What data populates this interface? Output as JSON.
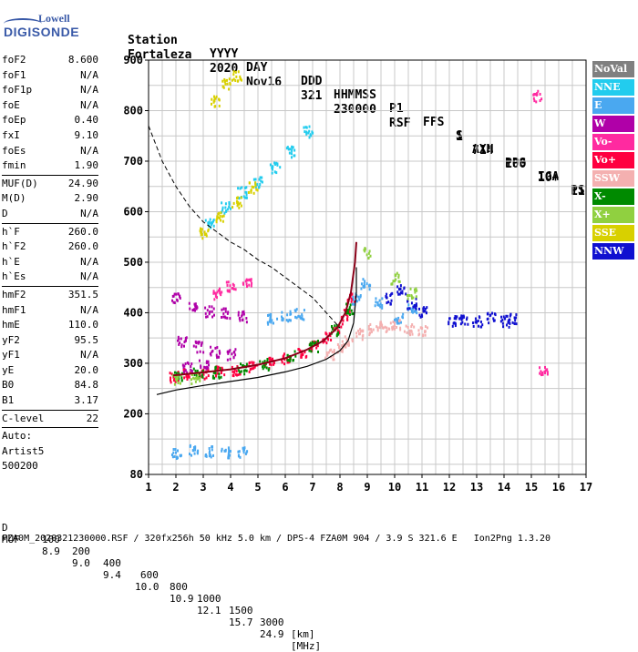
{
  "logo": {
    "line1": "Lowell",
    "line2": "DIGISONDE"
  },
  "header": {
    "labels": [
      "Station",
      "YYYY",
      "DAY",
      "DDD",
      "HHMMSS",
      "P1",
      "FFS",
      "S",
      "AXN",
      "PPS",
      "IGA",
      "PS"
    ],
    "values": [
      "Fortaleza",
      "2020",
      "Nov16",
      "321",
      "230000",
      "RSF",
      "1",
      "714",
      "100",
      "10+",
      "11"
    ]
  },
  "params": {
    "group1": [
      {
        "k": "foF2",
        "v": "8.600"
      },
      {
        "k": "foF1",
        "v": "N/A"
      },
      {
        "k": "foF1p",
        "v": "N/A"
      },
      {
        "k": "foE",
        "v": "N/A"
      },
      {
        "k": "foEp",
        "v": "0.40"
      },
      {
        "k": "fxI",
        "v": "9.10"
      },
      {
        "k": "foEs",
        "v": "N/A"
      },
      {
        "k": "fmin",
        "v": "1.90"
      }
    ],
    "group2": [
      {
        "k": "MUF(D)",
        "v": "24.90"
      },
      {
        "k": "M(D)",
        "v": "2.90"
      },
      {
        "k": "D",
        "v": "N/A"
      }
    ],
    "group3": [
      {
        "k": "h`F",
        "v": "260.0"
      },
      {
        "k": "h`F2",
        "v": "260.0"
      },
      {
        "k": "h`E",
        "v": "N/A"
      },
      {
        "k": "h`Es",
        "v": "N/A"
      }
    ],
    "group4": [
      {
        "k": "hmF2",
        "v": "351.5"
      },
      {
        "k": "hmF1",
        "v": "N/A"
      },
      {
        "k": "hmE",
        "v": "110.0"
      },
      {
        "k": "yF2",
        "v": "95.5"
      },
      {
        "k": "yF1",
        "v": "N/A"
      },
      {
        "k": "yE",
        "v": "20.0"
      },
      {
        "k": "B0",
        "v": "84.8"
      },
      {
        "k": "B1",
        "v": "3.17"
      }
    ],
    "group5": [
      {
        "k": "C-level",
        "v": "22"
      }
    ],
    "auto": [
      "Auto:",
      "Artist5",
      "500200"
    ]
  },
  "legend": [
    {
      "label": "NoVal",
      "color": "#808080",
      "text": "#ffffff"
    },
    {
      "label": "NNE",
      "color": "#22ccee",
      "text": "#ffffff"
    },
    {
      "label": "E",
      "color": "#4aa8f0",
      "text": "#ffffff"
    },
    {
      "label": "W",
      "color": "#b000a8",
      "text": "#ffffff"
    },
    {
      "label": "Vo-",
      "color": "#ff2aa0",
      "text": "#ffffff"
    },
    {
      "label": "Vo+",
      "color": "#ff0040",
      "text": "#ffffff"
    },
    {
      "label": "SSW",
      "color": "#f4b0b0",
      "text": "#ffffff"
    },
    {
      "label": "X-",
      "color": "#008a00",
      "text": "#ffffff"
    },
    {
      "label": "X+",
      "color": "#90d040",
      "text": "#ffffff"
    },
    {
      "label": "SSE",
      "color": "#d8d000",
      "text": "#ffffff"
    },
    {
      "label": "NNW",
      "color": "#1010d0",
      "text": "#ffffff"
    }
  ],
  "footer": {
    "d_label": "D",
    "d_values": [
      "100",
      "200",
      "400",
      "600",
      "800",
      "1000",
      "1500",
      "3000",
      "[km]"
    ],
    "muf_label": "MUF",
    "muf_values": [
      "8.9",
      "9.0",
      "9.4",
      "10.0",
      "10.9",
      "12.1",
      "15.7",
      "24.9",
      "[MHz]"
    ],
    "line": "FZA0M_2020321230000.RSF / 320fx256h 50 kHz 5.0 km / DPS-4 FZA0M 904 / 3.9 S 321.6 E   Ion2Png 1.3.20"
  },
  "chart_data": {
    "type": "scatter",
    "title": "",
    "xlabel": "",
    "ylabel": "",
    "xlim": [
      1,
      17
    ],
    "ylim": [
      80,
      900
    ],
    "xticks": [
      1,
      2,
      3,
      4,
      5,
      6,
      7,
      8,
      9,
      10,
      11,
      12,
      13,
      14,
      15,
      16,
      17
    ],
    "yticks": [
      80,
      200,
      300,
      400,
      500,
      600,
      700,
      800,
      900
    ],
    "grid": true,
    "legend_position": "right",
    "series": [
      {
        "label": "Vo+",
        "color": "#ff0040",
        "points": [
          [
            1.9,
            275
          ],
          [
            2.4,
            280
          ],
          [
            3.0,
            282
          ],
          [
            3.6,
            285
          ],
          [
            4.2,
            289
          ],
          [
            4.8,
            295
          ],
          [
            5.4,
            302
          ],
          [
            6.0,
            312
          ],
          [
            6.6,
            325
          ],
          [
            7.0,
            335
          ],
          [
            7.5,
            352
          ],
          [
            7.9,
            372
          ],
          [
            8.2,
            398
          ],
          [
            8.4,
            430
          ]
        ]
      },
      {
        "label": "X-",
        "color": "#008a00",
        "points": [
          [
            2.1,
            278
          ],
          [
            2.8,
            281
          ],
          [
            3.5,
            284
          ],
          [
            4.4,
            292
          ],
          [
            5.2,
            300
          ],
          [
            6.2,
            316
          ],
          [
            7.0,
            336
          ],
          [
            7.8,
            368
          ],
          [
            8.3,
            410
          ]
        ]
      },
      {
        "label": "W",
        "color": "#b000a8",
        "points": [
          [
            2.0,
            430
          ],
          [
            2.6,
            415
          ],
          [
            3.2,
            405
          ],
          [
            3.8,
            400
          ],
          [
            4.4,
            395
          ],
          [
            2.2,
            345
          ],
          [
            2.8,
            335
          ],
          [
            3.4,
            325
          ],
          [
            4.0,
            320
          ],
          [
            2.4,
            295
          ],
          [
            3.0,
            300
          ]
        ]
      },
      {
        "label": "E",
        "color": "#4aa8f0",
        "points": [
          [
            2.0,
            125
          ],
          [
            2.6,
            130
          ],
          [
            3.2,
            128
          ],
          [
            3.8,
            126
          ],
          [
            4.4,
            125
          ],
          [
            5.5,
            390
          ],
          [
            6.0,
            395
          ],
          [
            6.5,
            400
          ],
          [
            8.6,
            430
          ],
          [
            8.9,
            460
          ],
          [
            9.4,
            420
          ],
          [
            10.1,
            390
          ],
          [
            10.6,
            410
          ]
        ]
      },
      {
        "label": "NNW",
        "color": "#1010d0",
        "points": [
          [
            9.8,
            430
          ],
          [
            10.2,
            450
          ],
          [
            10.6,
            420
          ],
          [
            11.0,
            405
          ],
          [
            12.1,
            385
          ],
          [
            12.5,
            390
          ],
          [
            13.0,
            385
          ],
          [
            13.5,
            392
          ],
          [
            14.0,
            385
          ],
          [
            14.3,
            390
          ]
        ]
      },
      {
        "label": "SSW",
        "color": "#f4b0b0",
        "points": [
          [
            7.6,
            320
          ],
          [
            8.0,
            335
          ],
          [
            8.3,
            345
          ],
          [
            8.7,
            360
          ],
          [
            9.2,
            370
          ],
          [
            9.6,
            375
          ],
          [
            10.0,
            380
          ],
          [
            10.5,
            370
          ],
          [
            11.0,
            365
          ]
        ]
      },
      {
        "label": "NNE",
        "color": "#22ccee",
        "points": [
          [
            3.2,
            580
          ],
          [
            3.8,
            610
          ],
          [
            4.4,
            640
          ],
          [
            5.0,
            660
          ],
          [
            5.6,
            690
          ],
          [
            6.2,
            720
          ],
          [
            6.8,
            760
          ]
        ]
      },
      {
        "label": "SSE",
        "color": "#d8d000",
        "points": [
          [
            3.0,
            560
          ],
          [
            3.6,
            590
          ],
          [
            4.2,
            620
          ],
          [
            4.8,
            650
          ],
          [
            3.4,
            820
          ],
          [
            3.8,
            855
          ],
          [
            4.2,
            870
          ]
        ]
      },
      {
        "label": "X+",
        "color": "#90d040",
        "points": [
          [
            2.0,
            270
          ],
          [
            2.7,
            272
          ],
          [
            9.0,
            520
          ],
          [
            10.0,
            470
          ],
          [
            10.6,
            440
          ]
        ]
      },
      {
        "label": "Vo-",
        "color": "#ff2aa0",
        "points": [
          [
            3.5,
            440
          ],
          [
            4.0,
            455
          ],
          [
            4.6,
            460
          ],
          [
            15.2,
            830
          ],
          [
            15.4,
            290
          ]
        ]
      }
    ],
    "profile_solid": [
      [
        1.3,
        238
      ],
      [
        2.0,
        247
      ],
      [
        3.0,
        256
      ],
      [
        4.0,
        264
      ],
      [
        5.0,
        272
      ],
      [
        6.0,
        283
      ],
      [
        6.8,
        294
      ],
      [
        7.5,
        308
      ],
      [
        8.0,
        325
      ],
      [
        8.3,
        345
      ],
      [
        8.5,
        380
      ],
      [
        8.6,
        440
      ],
      [
        8.6,
        490
      ]
    ],
    "profile_dashed": [
      [
        1.0,
        770
      ],
      [
        1.5,
        700
      ],
      [
        2.0,
        650
      ],
      [
        2.5,
        610
      ],
      [
        3.0,
        580
      ],
      [
        3.5,
        560
      ],
      [
        4.0,
        540
      ],
      [
        4.5,
        525
      ],
      [
        5.0,
        505
      ],
      [
        5.5,
        490
      ],
      [
        6.0,
        470
      ],
      [
        6.5,
        450
      ],
      [
        7.0,
        430
      ],
      [
        7.5,
        400
      ],
      [
        8.0,
        370
      ]
    ],
    "fit_curve": [
      [
        1.9,
        276
      ],
      [
        3.0,
        282
      ],
      [
        4.0,
        288
      ],
      [
        5.0,
        297
      ],
      [
        6.0,
        310
      ],
      [
        6.8,
        327
      ],
      [
        7.4,
        345
      ],
      [
        7.9,
        370
      ],
      [
        8.2,
        400
      ],
      [
        8.4,
        440
      ],
      [
        8.55,
        500
      ],
      [
        8.6,
        540
      ]
    ]
  }
}
